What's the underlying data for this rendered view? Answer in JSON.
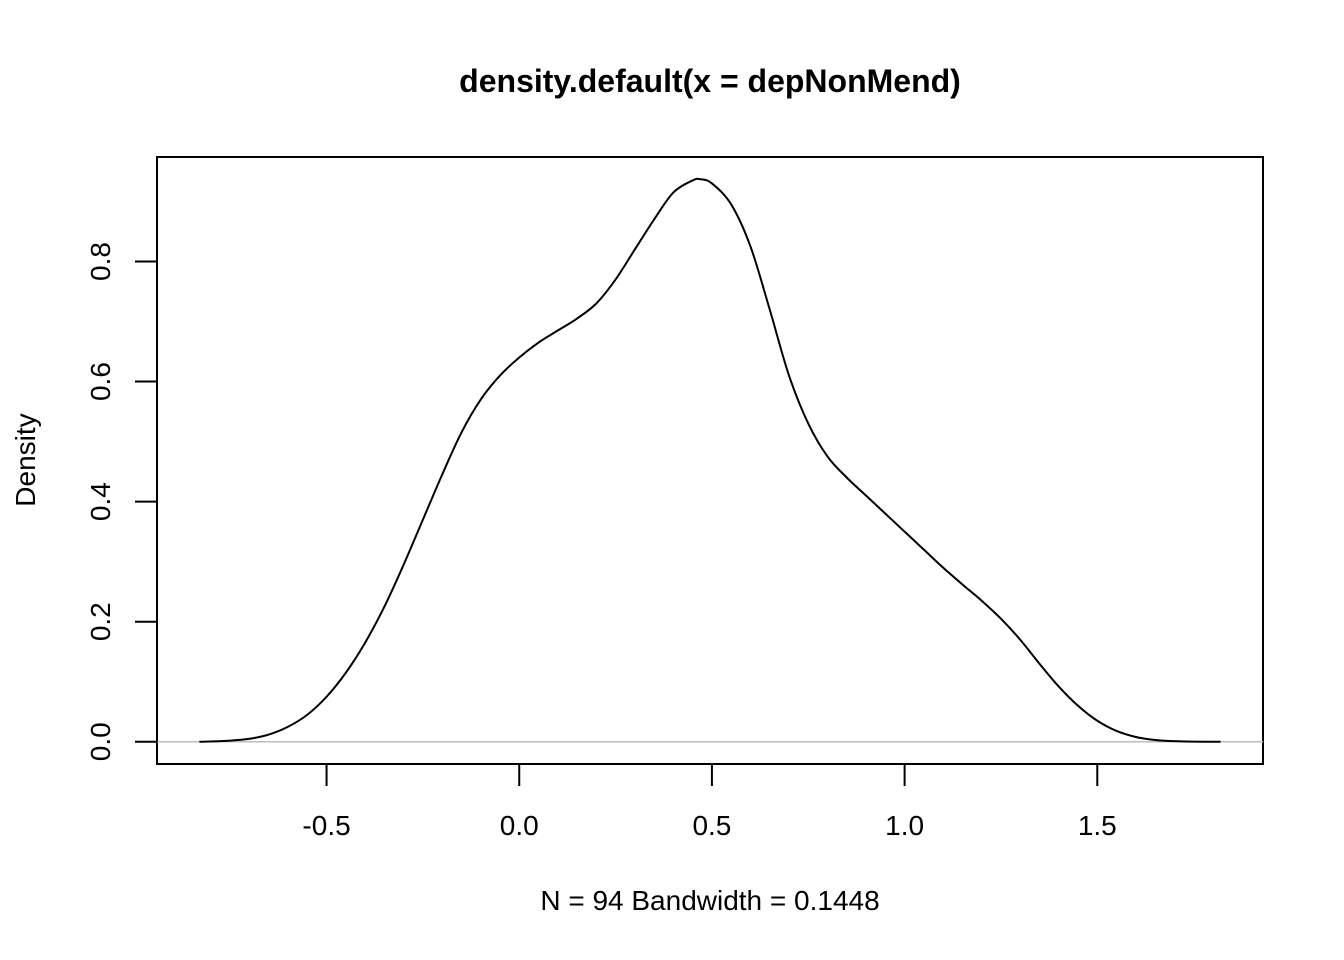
{
  "chart_data": {
    "type": "line",
    "title": "density.default(x = depNonMend)",
    "xlabel": "N = 94   Bandwidth = 0.1448",
    "ylabel": "Density",
    "xlim": [
      -0.94,
      1.93
    ],
    "ylim": [
      -0.037,
      0.974
    ],
    "x_ticks": [
      -0.5,
      0.0,
      0.5,
      1.0,
      1.5
    ],
    "x_tick_labels": [
      "-0.5",
      "0.0",
      "0.5",
      "1.0",
      "1.5"
    ],
    "y_ticks": [
      0.0,
      0.2,
      0.4,
      0.6,
      0.8
    ],
    "y_tick_labels": [
      "0.0",
      "0.2",
      "0.4",
      "0.6",
      "0.8"
    ],
    "grid": false,
    "baseline": 0.0,
    "colors": {
      "line": "#000000",
      "baseline": "#bebebe",
      "axis": "#000000"
    },
    "series": [
      {
        "x": [
          -0.83,
          -0.75,
          -0.7,
          -0.65,
          -0.6,
          -0.55,
          -0.5,
          -0.45,
          -0.4,
          -0.35,
          -0.3,
          -0.25,
          -0.2,
          -0.15,
          -0.1,
          -0.05,
          0.0,
          0.05,
          0.1,
          0.15,
          0.2,
          0.25,
          0.3,
          0.35,
          0.4,
          0.45,
          0.47,
          0.5,
          0.55,
          0.6,
          0.65,
          0.7,
          0.75,
          0.8,
          0.85,
          0.9,
          0.95,
          1.0,
          1.05,
          1.1,
          1.15,
          1.2,
          1.25,
          1.3,
          1.35,
          1.4,
          1.45,
          1.5,
          1.55,
          1.6,
          1.65,
          1.7,
          1.75,
          1.82
        ],
        "y": [
          0.0,
          0.002,
          0.005,
          0.012,
          0.025,
          0.045,
          0.075,
          0.115,
          0.165,
          0.225,
          0.295,
          0.37,
          0.445,
          0.515,
          0.57,
          0.61,
          0.64,
          0.665,
          0.685,
          0.705,
          0.73,
          0.77,
          0.82,
          0.87,
          0.915,
          0.935,
          0.937,
          0.93,
          0.895,
          0.825,
          0.72,
          0.61,
          0.53,
          0.475,
          0.44,
          0.41,
          0.38,
          0.35,
          0.32,
          0.29,
          0.262,
          0.235,
          0.205,
          0.17,
          0.13,
          0.092,
          0.06,
          0.035,
          0.018,
          0.008,
          0.003,
          0.001,
          0.0003,
          0.0
        ]
      }
    ]
  }
}
